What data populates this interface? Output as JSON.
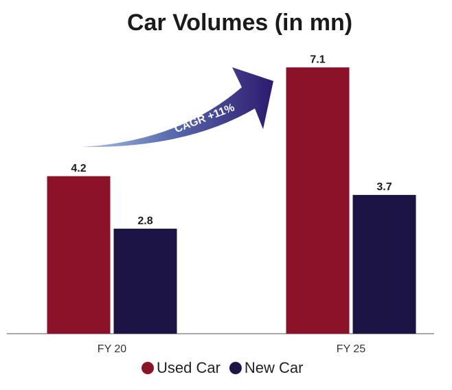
{
  "chart_data": {
    "type": "bar",
    "title": "Car Volumes (in mn)",
    "categories": [
      "FY 20",
      "FY 25"
    ],
    "series": [
      {
        "name": "Used Car",
        "color": "#8b1229",
        "values": [
          4.2,
          7.1
        ]
      },
      {
        "name": "New Car",
        "color": "#1c1445",
        "values": [
          2.8,
          3.7
        ]
      }
    ],
    "ylim": [
      0,
      8
    ],
    "annotation": "CAGR +11%",
    "legend": "bottom"
  }
}
